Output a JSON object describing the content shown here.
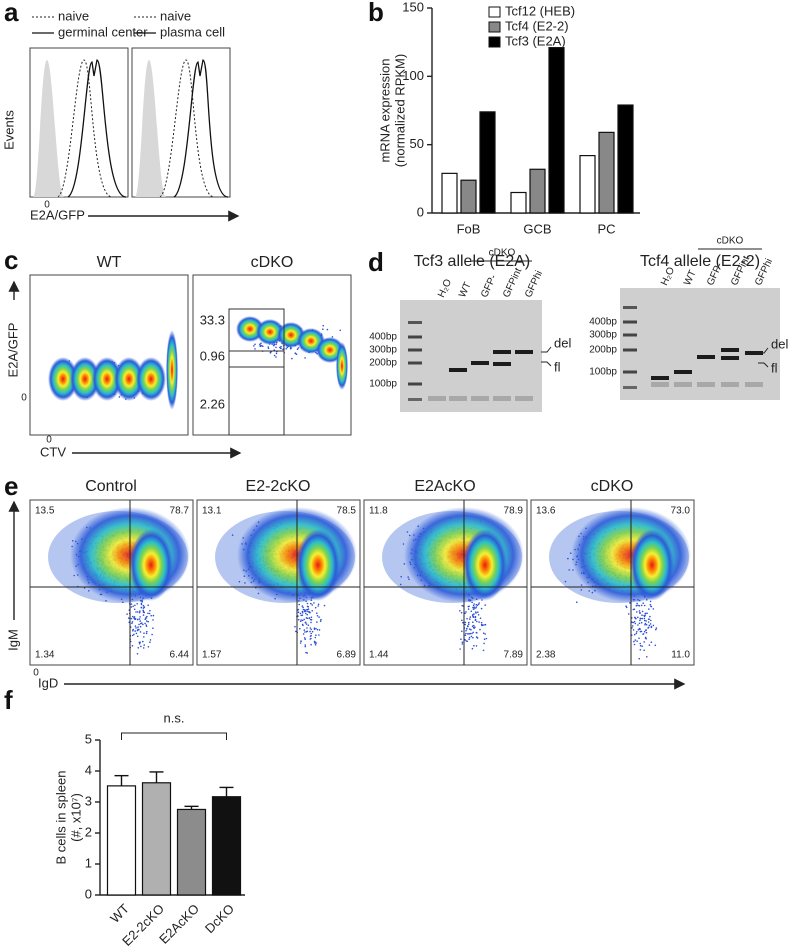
{
  "panel_labels": [
    "a",
    "b",
    "c",
    "d",
    "e",
    "f"
  ],
  "panel_a": {
    "plots": [
      {
        "legend": [
          "naive",
          "germinal center"
        ]
      },
      {
        "legend": [
          "naive",
          "plasma cell"
        ]
      }
    ],
    "y_label": "Events",
    "x_label": "E2A/GFP",
    "zero": "0"
  },
  "panel_c": {
    "plots": [
      {
        "title": "WT"
      },
      {
        "title": "cDKO",
        "gates": [
          "33.3",
          "0.96",
          "2.26"
        ]
      }
    ],
    "y_label": "E2A/GFP",
    "x_label": "CTV",
    "zero": "0"
  },
  "panel_d": {
    "gels": [
      {
        "title": "Tcf3 allele (E2A)",
        "ladder": [
          "400bp",
          "300bp",
          "200bp",
          "100bp"
        ],
        "lanes": [
          "H₂O",
          "WT",
          "GFP-",
          "GFPint",
          "GFPhi"
        ],
        "group": "cDKO",
        "bands": [
          "del",
          "fl"
        ]
      },
      {
        "title": "Tcf4 allele (E2-2)",
        "ladder": [
          "400bp",
          "300bp",
          "200bp",
          "100bp"
        ],
        "lanes": [
          "H₂O",
          "WT",
          "GFP-",
          "GFPint",
          "GFPhi"
        ],
        "group": "cDKO",
        "bands": [
          "del",
          "fl"
        ]
      }
    ]
  },
  "panel_e": {
    "plots": [
      {
        "title": "Control",
        "quadrants": [
          "13.5",
          "78.7",
          "1.34",
          "6.44"
        ]
      },
      {
        "title": "E2-2cKO",
        "quadrants": [
          "13.1",
          "78.5",
          "1.57",
          "6.89"
        ]
      },
      {
        "title": "E2AcKO",
        "quadrants": [
          "11.8",
          "78.9",
          "1.44",
          "7.89"
        ]
      },
      {
        "title": "cDKO",
        "quadrants": [
          "13.6",
          "73.0",
          "2.38",
          "11.0"
        ]
      }
    ],
    "y_label": "IgM",
    "x_label": "IgD",
    "zero": "0"
  },
  "chart_data": [
    {
      "type": "bar",
      "y_label": "mRNA expression",
      "y_label_sub": "(normalized RPKM)",
      "categories": [
        "FoB",
        "GCB",
        "PC"
      ],
      "series": [
        {
          "name": "Tcf12 (HEB)",
          "color": "#ffffff",
          "values": [
            29,
            15,
            42
          ]
        },
        {
          "name": "Tcf4 (E2-2)",
          "color": "#888888",
          "values": [
            24,
            32,
            59
          ]
        },
        {
          "name": "Tcf3 (E2A)",
          "color": "#000000",
          "values": [
            74,
            121,
            79
          ]
        }
      ],
      "ylim": [
        0,
        150
      ],
      "yticks": [
        0,
        50,
        100,
        150
      ]
    },
    {
      "type": "bar",
      "y_label": "B cells in spleen",
      "y_label_sub": "(#, x10⁷)",
      "categories": [
        "WT",
        "E2-2cKO",
        "E2AcKO",
        "DcKO"
      ],
      "values": [
        3.52,
        3.62,
        2.76,
        3.17
      ],
      "errors": [
        0.33,
        0.35,
        0.1,
        0.3
      ],
      "colors": [
        "#ffffff",
        "#b0b0b0",
        "#8c8c8c",
        "#111111"
      ],
      "annotation": "n.s.",
      "ylim": [
        0,
        5
      ],
      "yticks": [
        0,
        1,
        2,
        3,
        4,
        5
      ]
    }
  ]
}
